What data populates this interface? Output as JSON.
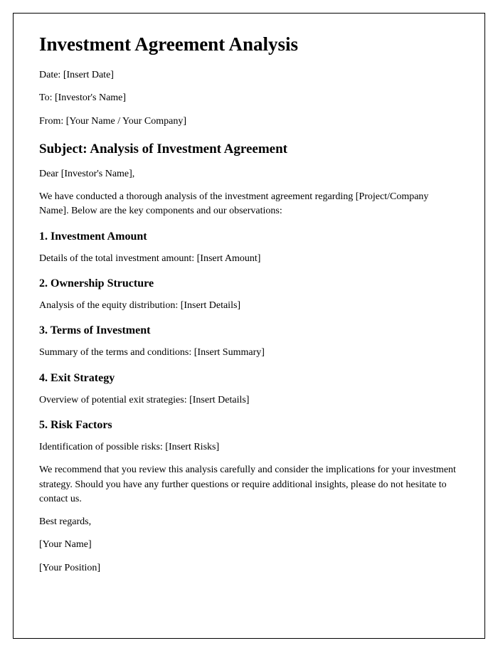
{
  "title": "Investment Agreement Analysis",
  "meta": {
    "date": "Date: [Insert Date]",
    "to": "To: [Investor's Name]",
    "from": "From: [Your Name / Your Company]"
  },
  "subject": "Subject: Analysis of Investment Agreement",
  "salutation": "Dear [Investor's Name],",
  "intro": "We have conducted a thorough analysis of the investment agreement regarding [Project/Company Name]. Below are the key components and our observations:",
  "sections": {
    "s1": {
      "heading": "1. Investment Amount",
      "body": "Details of the total investment amount: [Insert Amount]"
    },
    "s2": {
      "heading": "2. Ownership Structure",
      "body": "Analysis of the equity distribution: [Insert Details]"
    },
    "s3": {
      "heading": "3. Terms of Investment",
      "body": "Summary of the terms and conditions: [Insert Summary]"
    },
    "s4": {
      "heading": "4. Exit Strategy",
      "body": "Overview of potential exit strategies: [Insert Details]"
    },
    "s5": {
      "heading": "5. Risk Factors",
      "body": "Identification of possible risks: [Insert Risks]"
    }
  },
  "closing": "We recommend that you review this analysis carefully and consider the implications for your investment strategy. Should you have any further questions or require additional insights, please do not hesitate to contact us.",
  "signoff": "Best regards,",
  "signer_name": "[Your Name]",
  "signer_position": "[Your Position]"
}
